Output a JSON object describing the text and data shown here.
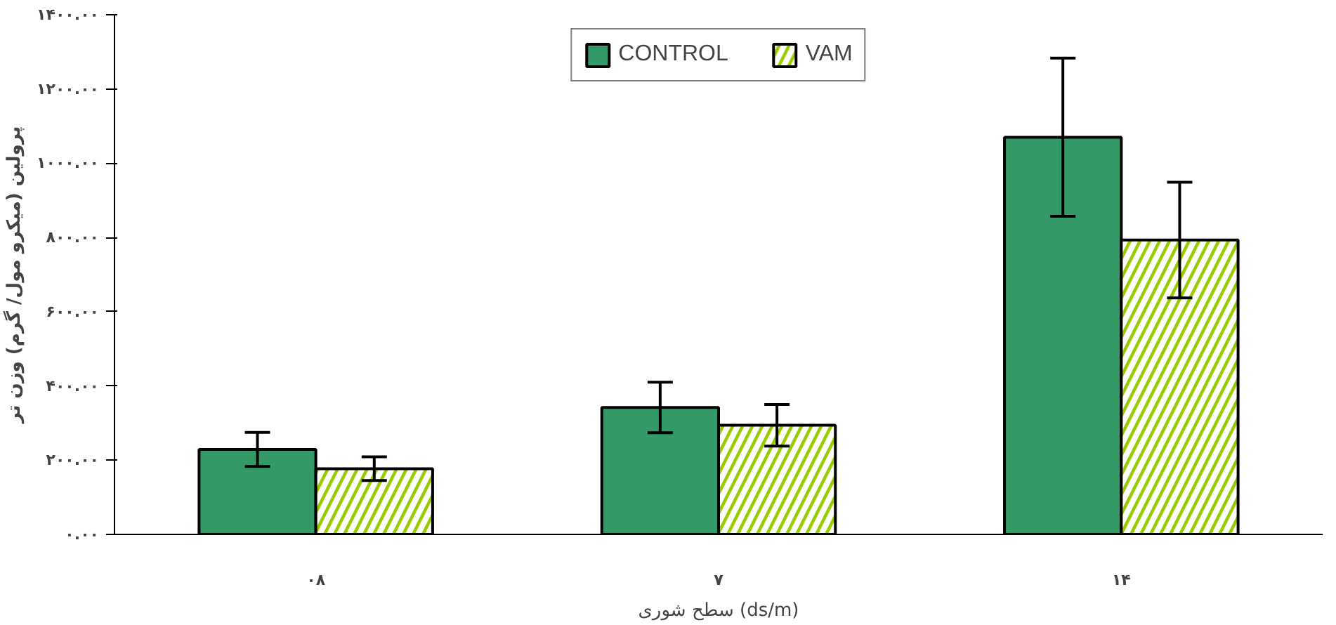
{
  "chart_data": {
    "type": "bar",
    "xlabel": "سطح شوری (ds/m)",
    "ylabel": "پرولین (میکرو مول/ گرم) وزن تر",
    "categories": [
      "۰۸",
      "۷",
      "۱۴"
    ],
    "series": [
      {
        "name": "CONTROL",
        "color": "#339966",
        "values": [
          229,
          342,
          1070
        ],
        "errors": [
          46,
          68,
          213
        ]
      },
      {
        "name": "VAM",
        "color": "#99cc00",
        "values": [
          177,
          294,
          793
        ],
        "errors": [
          32,
          56,
          156
        ]
      }
    ],
    "ylim": [
      0,
      1400
    ],
    "yticks": [
      {
        "value": 0,
        "label": "۰.۰۰"
      },
      {
        "value": 200,
        "label": "۲۰۰.۰۰"
      },
      {
        "value": 400,
        "label": "۴۰۰.۰۰"
      },
      {
        "value": 600,
        "label": "۶۰۰.۰۰"
      },
      {
        "value": 800,
        "label": "۸۰۰.۰۰"
      },
      {
        "value": 1000,
        "label": "۱۰۰۰.۰۰"
      },
      {
        "value": 1200,
        "label": "۱۲۰۰.۰۰"
      },
      {
        "value": 1400,
        "label": "۱۴۰۰.۰۰"
      }
    ],
    "legend": "top",
    "grid": false
  }
}
